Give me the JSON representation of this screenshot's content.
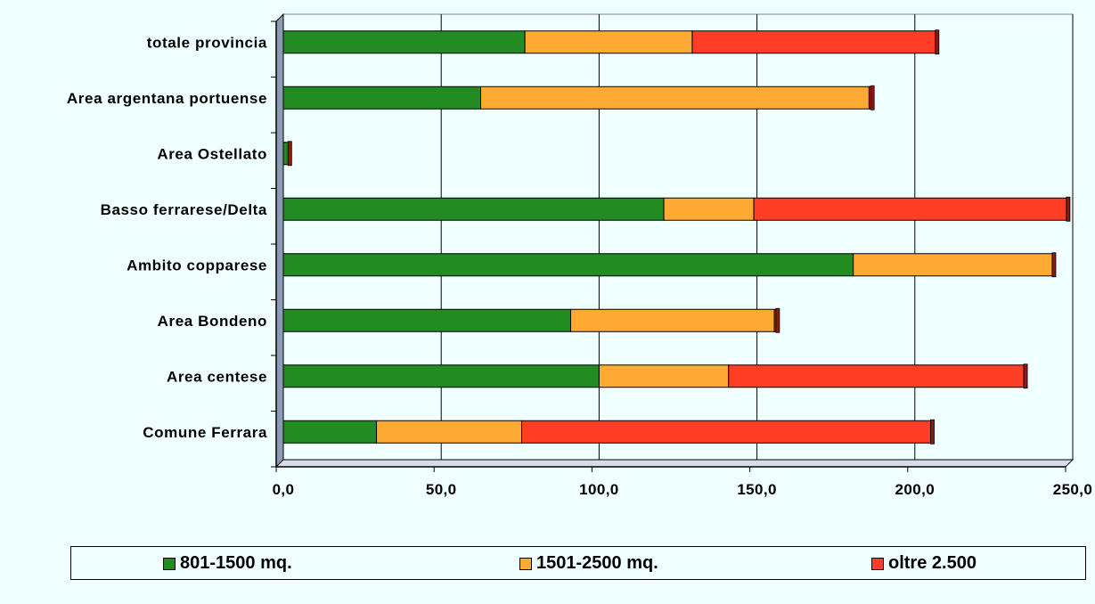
{
  "chart_data": {
    "type": "bar",
    "orientation": "horizontal",
    "stacked": true,
    "categories": [
      "totale provincia",
      "Area argentana portuense",
      "Area Ostellato",
      "Basso ferrarese/Delta",
      "Ambito copparese",
      "Area Bondeno",
      "Area centese",
      "Comune Ferrara"
    ],
    "series": [
      {
        "name": "801-1500 mq.",
        "color": "#228B22",
        "values": [
          76.5,
          62.5,
          1.5,
          120.5,
          180.5,
          91,
          100,
          29.5
        ]
      },
      {
        "name": "1501-2500 mq.",
        "color": "#FFAA33",
        "values": [
          53,
          123,
          0,
          28.5,
          63,
          64.5,
          41,
          46
        ]
      },
      {
        "name": "oltre 2.500",
        "color": "#FF3E25",
        "values": [
          77,
          0.5,
          0,
          99,
          0,
          0.5,
          93.5,
          129.5
        ]
      }
    ],
    "xlim": [
      0,
      250
    ],
    "xticks": [
      "0,0",
      "50,0",
      "100,0",
      "150,0",
      "200,0",
      "250,0"
    ],
    "xtick_values": [
      0,
      50,
      100,
      150,
      200,
      250
    ],
    "grid": true,
    "legend_position": "bottom",
    "title": "",
    "xlabel": "",
    "ylabel": ""
  }
}
